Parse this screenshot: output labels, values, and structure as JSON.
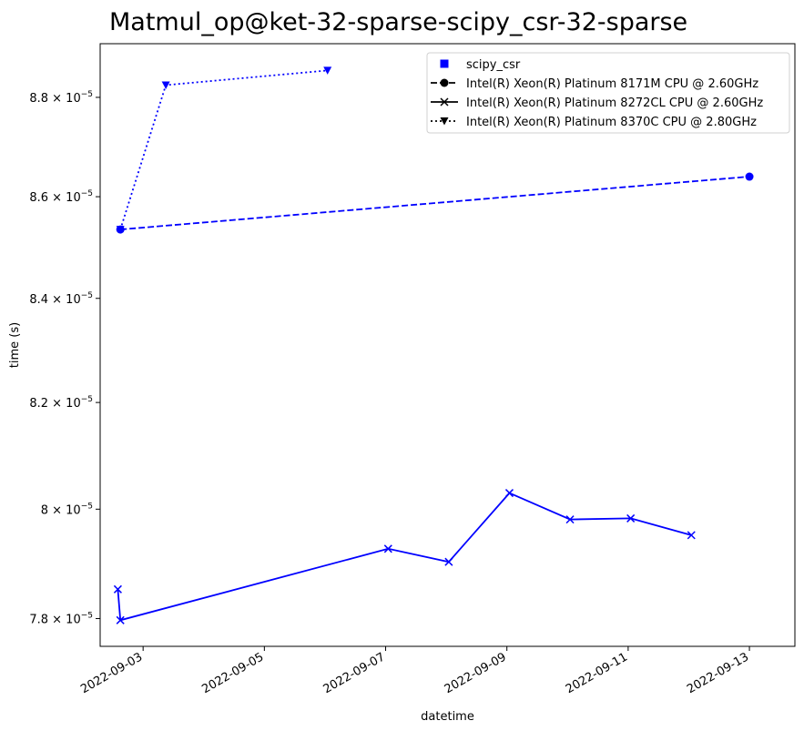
{
  "chart_data": {
    "type": "line",
    "title": "Matmul_op@ket-32-sparse-scipy_csr-32-sparse",
    "xlabel": "datetime",
    "ylabel": "time (s)",
    "x_type": "datetime",
    "xlim": [
      "2022-09-02 07:00",
      "2022-09-13 18:00"
    ],
    "ylim": [
      7.75e-05,
      8.91e-05
    ],
    "y_scale": "log",
    "grid": false,
    "legend_position": "top-right",
    "x_ticks": [
      "2022-09-03",
      "2022-09-05",
      "2022-09-07",
      "2022-09-09",
      "2022-09-11",
      "2022-09-13"
    ],
    "y_ticks": [
      {
        "value": 7.8e-05,
        "mantissa": "7.8",
        "exponent": "−5"
      },
      {
        "value": 8e-05,
        "mantissa": "8",
        "exponent": "−5"
      },
      {
        "value": 8.2e-05,
        "mantissa": "8.2",
        "exponent": "−5"
      },
      {
        "value": 8.4e-05,
        "mantissa": "8.4",
        "exponent": "−5"
      },
      {
        "value": 8.6e-05,
        "mantissa": "8.6",
        "exponent": "−5"
      },
      {
        "value": 8.8e-05,
        "mantissa": "8.8",
        "exponent": "−5"
      }
    ],
    "legend": [
      {
        "label": "scipy_csr",
        "marker": "square",
        "line": "none"
      },
      {
        "label": "Intel(R) Xeon(R) Platinum 8171M CPU @ 2.60GHz",
        "marker": "circle",
        "line": "dashed"
      },
      {
        "label": "Intel(R) Xeon(R) Platinum 8272CL CPU @ 2.60GHz",
        "marker": "x",
        "line": "solid"
      },
      {
        "label": "Intel(R) Xeon(R) Platinum 8370C CPU @ 2.80GHz",
        "marker": "triangle-down",
        "line": "dotted"
      }
    ],
    "series": [
      {
        "name": "Intel(R) Xeon(R) Platinum 8171M CPU @ 2.60GHz",
        "color": "#0000ff",
        "line": "dashed",
        "marker": "circle",
        "x": [
          "2022-09-02 15:00",
          "2022-09-13 00:00"
        ],
        "y": [
          8.535e-05,
          8.64e-05
        ]
      },
      {
        "name": "Intel(R) Xeon(R) Platinum 8272CL CPU @ 2.60GHz",
        "color": "#0000ff",
        "line": "solid",
        "marker": "x",
        "x": [
          "2022-09-02 14:00",
          "2022-09-02 15:00",
          "2022-09-07 01:00",
          "2022-09-08 01:00",
          "2022-09-09 01:00",
          "2022-09-10 01:00",
          "2022-09-11 01:00",
          "2022-09-12 01:00"
        ],
        "y": [
          7.853e-05,
          7.797e-05,
          7.927e-05,
          7.903e-05,
          8.03e-05,
          7.981e-05,
          7.983e-05,
          7.952e-05
        ]
      },
      {
        "name": "Intel(R) Xeon(R) Platinum 8370C CPU @ 2.80GHz",
        "color": "#0000ff",
        "line": "dotted",
        "marker": "triangle-down",
        "x": [
          "2022-09-02 15:00",
          "2022-09-03 09:00",
          "2022-09-06 01:00"
        ],
        "y": [
          8.535e-05,
          8.825e-05,
          8.855e-05
        ]
      }
    ]
  }
}
